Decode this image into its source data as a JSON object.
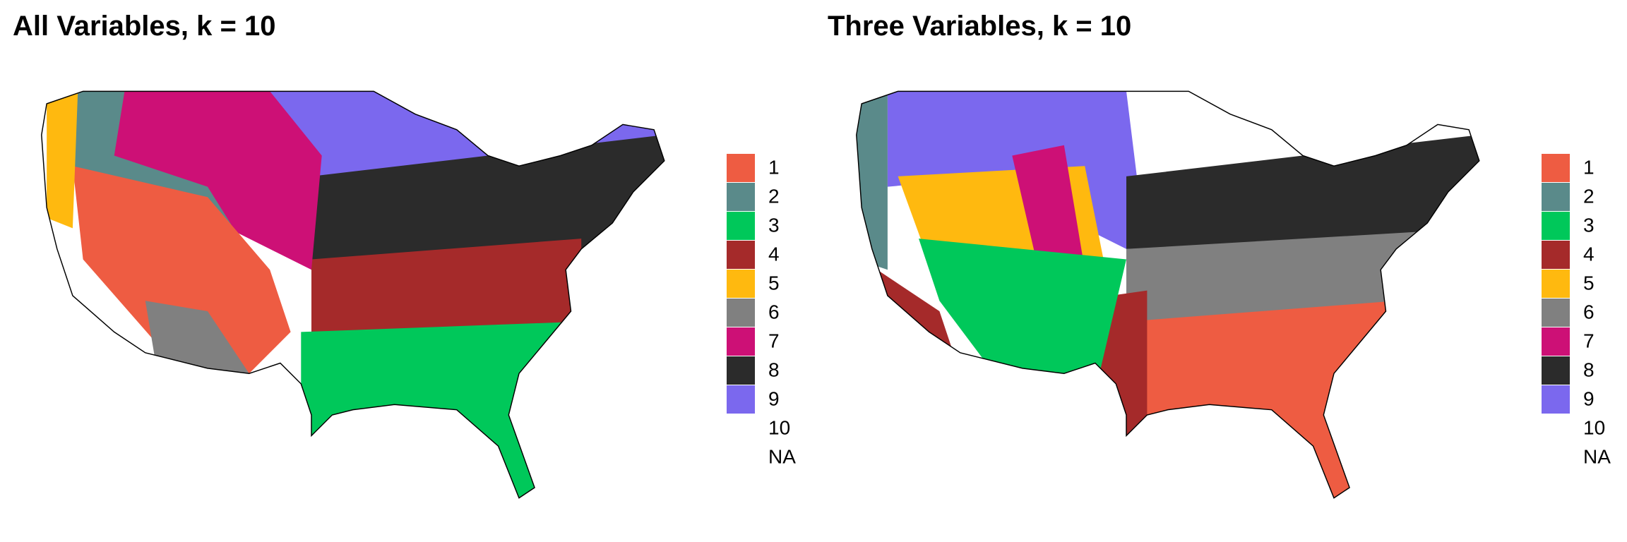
{
  "panels": [
    {
      "title": "All Variables, k = 10",
      "legend": [
        {
          "label": "1",
          "color": "#ee5c42"
        },
        {
          "label": "2",
          "color": "#5a8a8a"
        },
        {
          "label": "3",
          "color": "#00c85a"
        },
        {
          "label": "4",
          "color": "#a52a2a"
        },
        {
          "label": "5",
          "color": "#ffb90f"
        },
        {
          "label": "6",
          "color": "#808080"
        },
        {
          "label": "7",
          "color": "#cd1076"
        },
        {
          "label": "8",
          "color": "#2b2b2b"
        },
        {
          "label": "9",
          "color": "#7b68ee"
        },
        {
          "label": "10",
          "color": "#ffffff"
        },
        {
          "label": "NA",
          "color": "#ffffff"
        }
      ]
    },
    {
      "title": "Three Variables, k = 10",
      "legend": [
        {
          "label": "1",
          "color": "#ee5c42"
        },
        {
          "label": "2",
          "color": "#5a8a8a"
        },
        {
          "label": "3",
          "color": "#00c85a"
        },
        {
          "label": "4",
          "color": "#a52a2a"
        },
        {
          "label": "5",
          "color": "#ffb90f"
        },
        {
          "label": "6",
          "color": "#808080"
        },
        {
          "label": "7",
          "color": "#cd1076"
        },
        {
          "label": "8",
          "color": "#2b2b2b"
        },
        {
          "label": "9",
          "color": "#7b68ee"
        },
        {
          "label": "10",
          "color": "#ffffff"
        },
        {
          "label": "NA",
          "color": "#ffffff"
        }
      ]
    }
  ]
}
